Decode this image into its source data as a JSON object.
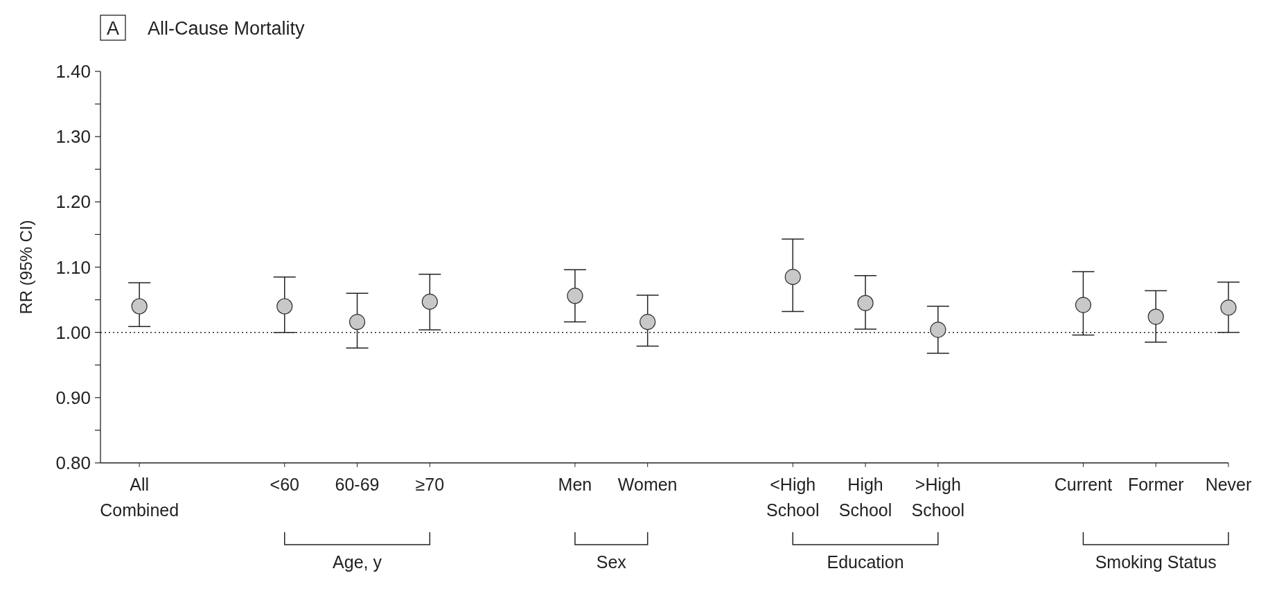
{
  "chart_data": {
    "type": "scatter",
    "title": "All-Cause Mortality",
    "ylabel": "RR (95% CI)",
    "categories": [
      "All Combined",
      null,
      "<60",
      "60-69",
      "≥70",
      null,
      "Men",
      "Women",
      null,
      "<High School",
      "High School",
      ">High School",
      null,
      "Current",
      "Former",
      "Never"
    ],
    "values": [
      1.04,
      null,
      1.04,
      1.016,
      1.047,
      null,
      1.056,
      1.016,
      null,
      1.085,
      1.045,
      1.004,
      null,
      1.042,
      1.024,
      1.038
    ],
    "errors": [
      [
        1.009,
        1.076
      ],
      null,
      [
        1.0,
        1.085
      ],
      [
        0.976,
        1.06
      ],
      [
        1.004,
        1.089
      ],
      null,
      [
        1.016,
        1.096
      ],
      [
        0.979,
        1.057
      ],
      null,
      [
        1.032,
        1.143
      ],
      [
        1.005,
        1.087
      ],
      [
        0.968,
        1.04
      ],
      null,
      [
        0.996,
        1.093
      ],
      [
        0.985,
        1.064
      ],
      [
        1.0,
        1.077
      ]
    ],
    "color": "#c8c8c8",
    "marker": "circle",
    "ylim": [
      0.8,
      1.4
    ],
    "yticks": [
      {
        "value": 0.8,
        "label": "0.80"
      },
      {
        "value": 0.85,
        "label": null
      },
      {
        "value": 0.9,
        "label": "0.90"
      },
      {
        "value": 0.95,
        "label": null
      },
      {
        "value": 1.0,
        "label": "1.00"
      },
      {
        "value": 1.05,
        "label": null
      },
      {
        "value": 1.1,
        "label": "1.10"
      },
      {
        "value": 1.15,
        "label": null
      },
      {
        "value": 1.2,
        "label": "1.20"
      },
      {
        "value": 1.25,
        "label": null
      },
      {
        "value": 1.3,
        "label": "1.30"
      },
      {
        "value": 1.35,
        "label": null
      },
      {
        "value": 1.4,
        "label": "1.40"
      }
    ],
    "ref_lines": [
      {
        "axis": "y",
        "value": 1.0,
        "line_style": "dotted"
      }
    ],
    "annotations": [
      "A",
      "Age, y",
      "Sex",
      "Education",
      "Smoking Status"
    ],
    "grid": false
  }
}
